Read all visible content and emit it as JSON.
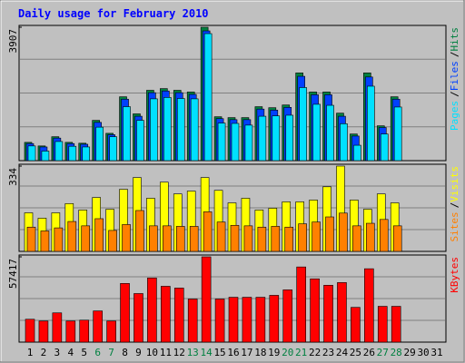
{
  "chart_data": [
    {
      "type": "bar",
      "title": "Daily usage for February 2010",
      "ylim": [
        0,
        3907
      ],
      "yticks": [
        3907
      ],
      "separator": "/",
      "series": [
        {
          "name": "Hits",
          "color": "#008040",
          "values": [
            535,
            430,
            700,
            535,
            510,
            1180,
            800,
            1870,
            1370,
            2060,
            2110,
            2060,
            2010,
            3907,
            1285,
            1260,
            1260,
            1580,
            1550,
            1630,
            2570,
            2010,
            2010,
            1390,
            780,
            2570,
            1020,
            1870,
            null,
            null,
            null
          ]
        },
        {
          "name": "Files",
          "color": "#0040ff",
          "values": [
            500,
            400,
            660,
            500,
            480,
            1120,
            760,
            1800,
            1300,
            1990,
            2040,
            1990,
            1940,
            3800,
            1230,
            1200,
            1200,
            1510,
            1480,
            1560,
            2470,
            1930,
            1930,
            1300,
            720,
            2450,
            970,
            1800,
            null,
            null,
            null
          ]
        },
        {
          "name": "Pages",
          "color": "#00e0ff",
          "values": [
            430,
            280,
            560,
            420,
            400,
            980,
            700,
            1580,
            1180,
            1810,
            1850,
            1820,
            1810,
            3720,
            1100,
            1090,
            1040,
            1300,
            1310,
            1330,
            2140,
            1650,
            1620,
            1080,
            450,
            2180,
            780,
            1570,
            null,
            null,
            null
          ]
        }
      ]
    },
    {
      "type": "bar",
      "ylim": [
        0,
        334
      ],
      "yticks": [
        334
      ],
      "separator": "/",
      "series": [
        {
          "name": "Visits",
          "color": "#ffff00",
          "values": [
            151,
            130,
            151,
            187,
            162,
            211,
            165,
            243,
            289,
            208,
            271,
            225,
            236,
            289,
            239,
            190,
            208,
            162,
            169,
            194,
            194,
            201,
            253,
            334,
            201,
            165,
            225,
            190,
            null,
            null,
            null
          ]
        },
        {
          "name": "Sites",
          "color": "#ff8000",
          "values": [
            95,
            80,
            92,
            117,
            100,
            128,
            82,
            105,
            160,
            100,
            100,
            98,
            98,
            155,
            115,
            102,
            100,
            95,
            98,
            95,
            108,
            115,
            135,
            150,
            100,
            110,
            125,
            100,
            null,
            null,
            null
          ]
        }
      ]
    },
    {
      "type": "bar",
      "ylim": [
        0,
        57417
      ],
      "yticks": [
        57417
      ],
      "categories": [
        "1",
        "2",
        "3",
        "4",
        "5",
        "6",
        "7",
        "8",
        "9",
        "10",
        "11",
        "12",
        "13",
        "14",
        "15",
        "16",
        "17",
        "18",
        "19",
        "20",
        "21",
        "22",
        "23",
        "24",
        "25",
        "26",
        "27",
        "28",
        "29",
        "30",
        "31"
      ],
      "category_label_colors": [
        "#000000",
        "#000000",
        "#000000",
        "#000000",
        "#000000",
        "#008040",
        "#008040",
        "#000000",
        "#000000",
        "#000000",
        "#000000",
        "#000000",
        "#008040",
        "#008040",
        "#000000",
        "#000000",
        "#000000",
        "#000000",
        "#000000",
        "#008040",
        "#008040",
        "#000000",
        "#000000",
        "#000000",
        "#000000",
        "#000000",
        "#008040",
        "#008040",
        "#000000",
        "#000000",
        "#000000"
      ],
      "series": [
        {
          "name": "KBytes",
          "color": "#ff0000",
          "values": [
            15400,
            14200,
            19700,
            14200,
            14800,
            21000,
            14200,
            39500,
            32700,
            43200,
            37600,
            36400,
            29000,
            57417,
            29000,
            30200,
            30200,
            30200,
            31500,
            35200,
            50600,
            42600,
            38300,
            40100,
            23400,
            49400,
            24100,
            24100,
            null,
            null,
            null
          ]
        }
      ]
    }
  ]
}
